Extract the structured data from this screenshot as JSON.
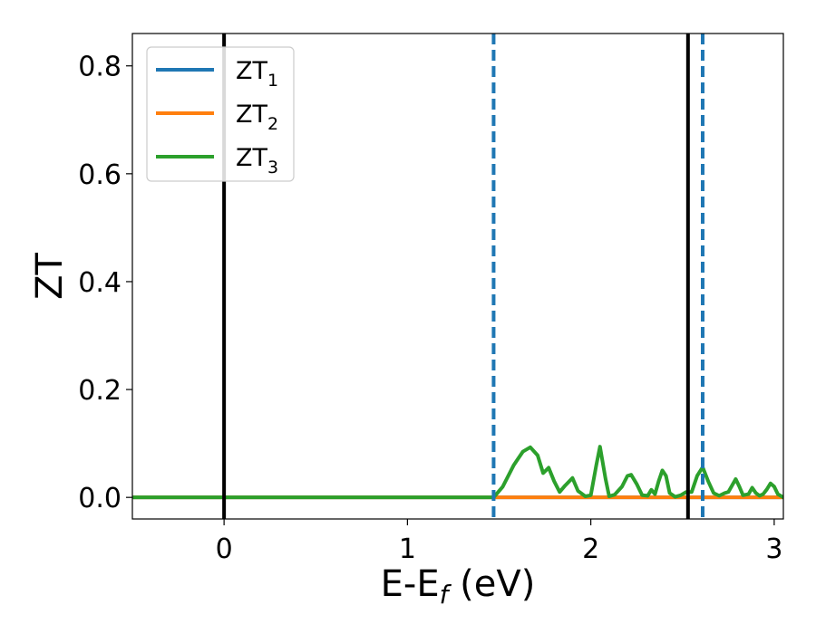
{
  "chart_data": {
    "type": "line",
    "xlabel": {
      "main": "E-E",
      "sub": "f",
      "rest": " (eV)"
    },
    "ylabel": "ZT",
    "xlim": [
      -0.5,
      3.05
    ],
    "ylim": [
      -0.04,
      0.86
    ],
    "xticks": [
      0,
      1,
      2,
      3
    ],
    "xtick_labels": [
      "0",
      "1",
      "2",
      "3"
    ],
    "yticks": [
      0.0,
      0.2,
      0.4,
      0.6,
      0.8
    ],
    "ytick_labels": [
      "0.0",
      "0.2",
      "0.4",
      "0.6",
      "0.8"
    ],
    "grid": false,
    "legend_position": "top-left",
    "series": [
      {
        "name": "ZT",
        "sub": "1",
        "color": "#1f77b4",
        "x": [
          -0.5,
          3.05
        ],
        "y": [
          0.0,
          0.0
        ]
      },
      {
        "name": "ZT",
        "sub": "2",
        "color": "#ff7f0e",
        "x": [
          -0.5,
          3.05
        ],
        "y": [
          0.0,
          0.0
        ]
      },
      {
        "name": "ZT",
        "sub": "3",
        "color": "#2ca02c",
        "x": [
          -0.5,
          1.47,
          1.52,
          1.58,
          1.63,
          1.67,
          1.71,
          1.74,
          1.77,
          1.8,
          1.83,
          1.86,
          1.9,
          1.93,
          1.97,
          2.0,
          2.03,
          2.05,
          2.08,
          2.1,
          2.13,
          2.17,
          2.2,
          2.22,
          2.25,
          2.28,
          2.31,
          2.33,
          2.35,
          2.37,
          2.39,
          2.41,
          2.43,
          2.46,
          2.49,
          2.52,
          2.55,
          2.58,
          2.61,
          2.64,
          2.67,
          2.7,
          2.73,
          2.75,
          2.77,
          2.79,
          2.81,
          2.83,
          2.86,
          2.88,
          2.9,
          2.92,
          2.94,
          2.96,
          2.98,
          3.0,
          3.02,
          3.05
        ],
        "y": [
          0.0,
          0.0,
          0.02,
          0.06,
          0.085,
          0.093,
          0.078,
          0.045,
          0.055,
          0.03,
          0.01,
          0.022,
          0.036,
          0.012,
          0.002,
          0.004,
          0.06,
          0.094,
          0.035,
          0.002,
          0.005,
          0.02,
          0.04,
          0.042,
          0.025,
          0.004,
          0.003,
          0.014,
          0.006,
          0.03,
          0.05,
          0.04,
          0.008,
          0.001,
          0.004,
          0.01,
          0.01,
          0.04,
          0.056,
          0.03,
          0.008,
          0.003,
          0.008,
          0.01,
          0.022,
          0.034,
          0.02,
          0.004,
          0.006,
          0.018,
          0.008,
          0.003,
          0.006,
          0.015,
          0.026,
          0.02,
          0.006,
          0.0
        ]
      }
    ],
    "vlines": [
      {
        "x": 0.0,
        "style": "solid",
        "color": "#000000"
      },
      {
        "x": 1.47,
        "style": "dashed",
        "color": "#1f77b4"
      },
      {
        "x": 2.53,
        "style": "solid",
        "color": "#000000"
      },
      {
        "x": 2.61,
        "style": "dashed",
        "color": "#1f77b4"
      }
    ]
  }
}
